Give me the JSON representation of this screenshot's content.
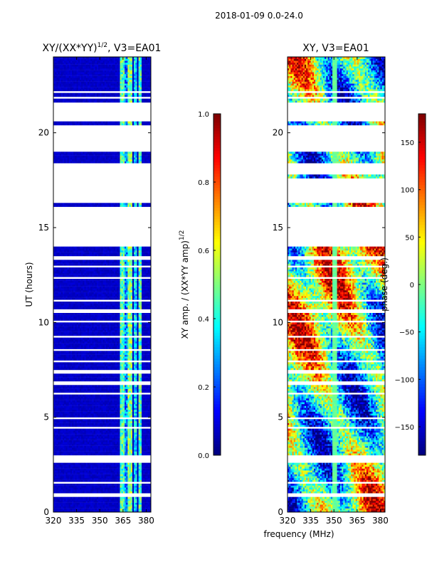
{
  "chart_data": [
    {
      "type": "heatmap",
      "suptitle": "2018-01-09 0.0-24.0",
      "title_text": "XY/(XX*YY)",
      "title_sup": "1/2",
      "title_suffix": ", V3=EA01",
      "xlabel": "",
      "ylabel": "UT (hours)",
      "xlim": [
        320,
        383
      ],
      "ylim": [
        0,
        24
      ],
      "xticks": [
        320,
        335,
        350,
        365,
        380
      ],
      "yticks": [
        0,
        5,
        10,
        15,
        20
      ],
      "colorbar": {
        "label_text": "XY amp. / (XX*YY amp)",
        "label_sup": "1/2",
        "range": [
          0.0,
          1.0
        ],
        "ticks": [
          "0.0",
          "0.2",
          "0.4",
          "0.6",
          "0.8",
          "1.0"
        ],
        "tick_values": [
          0.0,
          0.2,
          0.4,
          0.6,
          0.8,
          1.0
        ]
      },
      "background_value": 0.05,
      "bright_bands": [
        {
          "x0": 363,
          "x1": 366,
          "value": 0.45
        },
        {
          "x0": 366,
          "x1": 368,
          "value": 0.25
        },
        {
          "x0": 368,
          "x1": 371,
          "value": 0.5
        },
        {
          "x0": 372,
          "x1": 374,
          "value": 0.35
        },
        {
          "x0": 375,
          "x1": 377,
          "value": 0.45
        }
      ],
      "data_ranges": [
        [
          0,
          2.6
        ],
        [
          3.0,
          14.0
        ],
        [
          16.1,
          16.3
        ],
        [
          18.4,
          19.0
        ],
        [
          20.4,
          20.6
        ],
        [
          21.6,
          24.0
        ]
      ],
      "flagged_rows": [
        0.85,
        0.95,
        1.55,
        4.45,
        4.95,
        6.2,
        6.8,
        7.4,
        7.9,
        8.6,
        9.25,
        10.1,
        10.6,
        11.2,
        11.8,
        12.3,
        12.9,
        13.4,
        13.7,
        21.9,
        22.2,
        22.5,
        22.9
      ]
    },
    {
      "type": "heatmap",
      "title_text": "XY, V3=EA01",
      "xlabel": "frequency (MHz)",
      "ylabel": "",
      "xlim": [
        320,
        383
      ],
      "ylim": [
        0,
        24
      ],
      "xticks": [
        320,
        335,
        350,
        365,
        380
      ],
      "yticks": [
        0,
        5,
        10,
        15,
        20
      ],
      "colorbar": {
        "label_text": "phase (deg.)",
        "range": [
          -180,
          180
        ],
        "ticks": [
          "−150",
          "−100",
          "−50",
          "0",
          "50",
          "100",
          "150"
        ],
        "tick_values": [
          -150,
          -100,
          -50,
          0,
          50,
          100,
          150
        ]
      },
      "data_ranges": [
        [
          0,
          2.6
        ],
        [
          3.0,
          14.0
        ],
        [
          16.1,
          16.3
        ],
        [
          17.6,
          17.8
        ],
        [
          18.4,
          19.0
        ],
        [
          20.4,
          20.6
        ],
        [
          21.6,
          24.0
        ]
      ],
      "flagged_rows": [
        0.85,
        0.95,
        1.55,
        4.45,
        4.95,
        6.2,
        6.8,
        7.4,
        7.9,
        8.6,
        9.25,
        10.1,
        10.6,
        11.2,
        11.8,
        12.3,
        12.9,
        13.4,
        13.7,
        21.9,
        22.2,
        22.5,
        22.9
      ]
    }
  ]
}
